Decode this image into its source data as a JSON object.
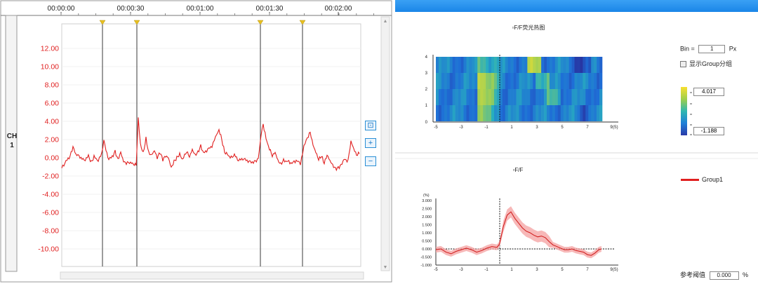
{
  "left_panel": {
    "time_ticks": [
      "00:00:00",
      "00:00:30",
      "00:01:00",
      "00:01:30",
      "00:02:00"
    ],
    "channel_label": "CH1",
    "y_ticks": [
      "12.00",
      "10.00",
      "8.00",
      "6.00",
      "4.00",
      "2.00",
      "0.00",
      "-2.00",
      "-4.00",
      "-6.00",
      "-8.00",
      "-10.00"
    ],
    "trace_color": "#e02020",
    "tick_color": "#e02020",
    "marker_color": "#e8c020",
    "marker_count": 4,
    "buttons": [
      {
        "name": "fit-button",
        "icon": "fit-icon",
        "glyph": "⛶"
      },
      {
        "name": "zoom-in-button",
        "icon": "plus-icon",
        "glyph": "+"
      },
      {
        "name": "zoom-out-button",
        "icon": "minus-icon",
        "glyph": "−"
      }
    ]
  },
  "right_panel": {
    "heatmap_title": "▫F/F荧光热图",
    "heatmap_y_ticks": [
      "4",
      "3",
      "2",
      "1",
      "0"
    ],
    "heatmap_x_ticks": [
      "-5",
      "-3",
      "-1",
      "1",
      "3",
      "5",
      "7",
      "9(S)"
    ],
    "bin_label": "Bin =",
    "bin_value": "1",
    "bin_unit": "Px",
    "group_toggle_label": "显示Group分组",
    "colorbar_max": "4.017",
    "colorbar_min": "-1.188",
    "trace_title": "▫F/F",
    "trace_unit": "(%)",
    "trace_y_ticks": [
      "3.000",
      "2.500",
      "2.000",
      "1.500",
      "1.000",
      "0.500",
      "0.000",
      "-0.500",
      "-1.000"
    ],
    "trace_x_ticks": [
      "-5",
      "-3",
      "-1",
      "1",
      "3",
      "5",
      "7",
      "9(S)"
    ],
    "legend_label": "Group1",
    "ref_label": "参考阈值",
    "ref_value": "0.000",
    "ref_unit": "%",
    "accent_color": "#1a86e8",
    "trace_color": "#e02020"
  }
}
